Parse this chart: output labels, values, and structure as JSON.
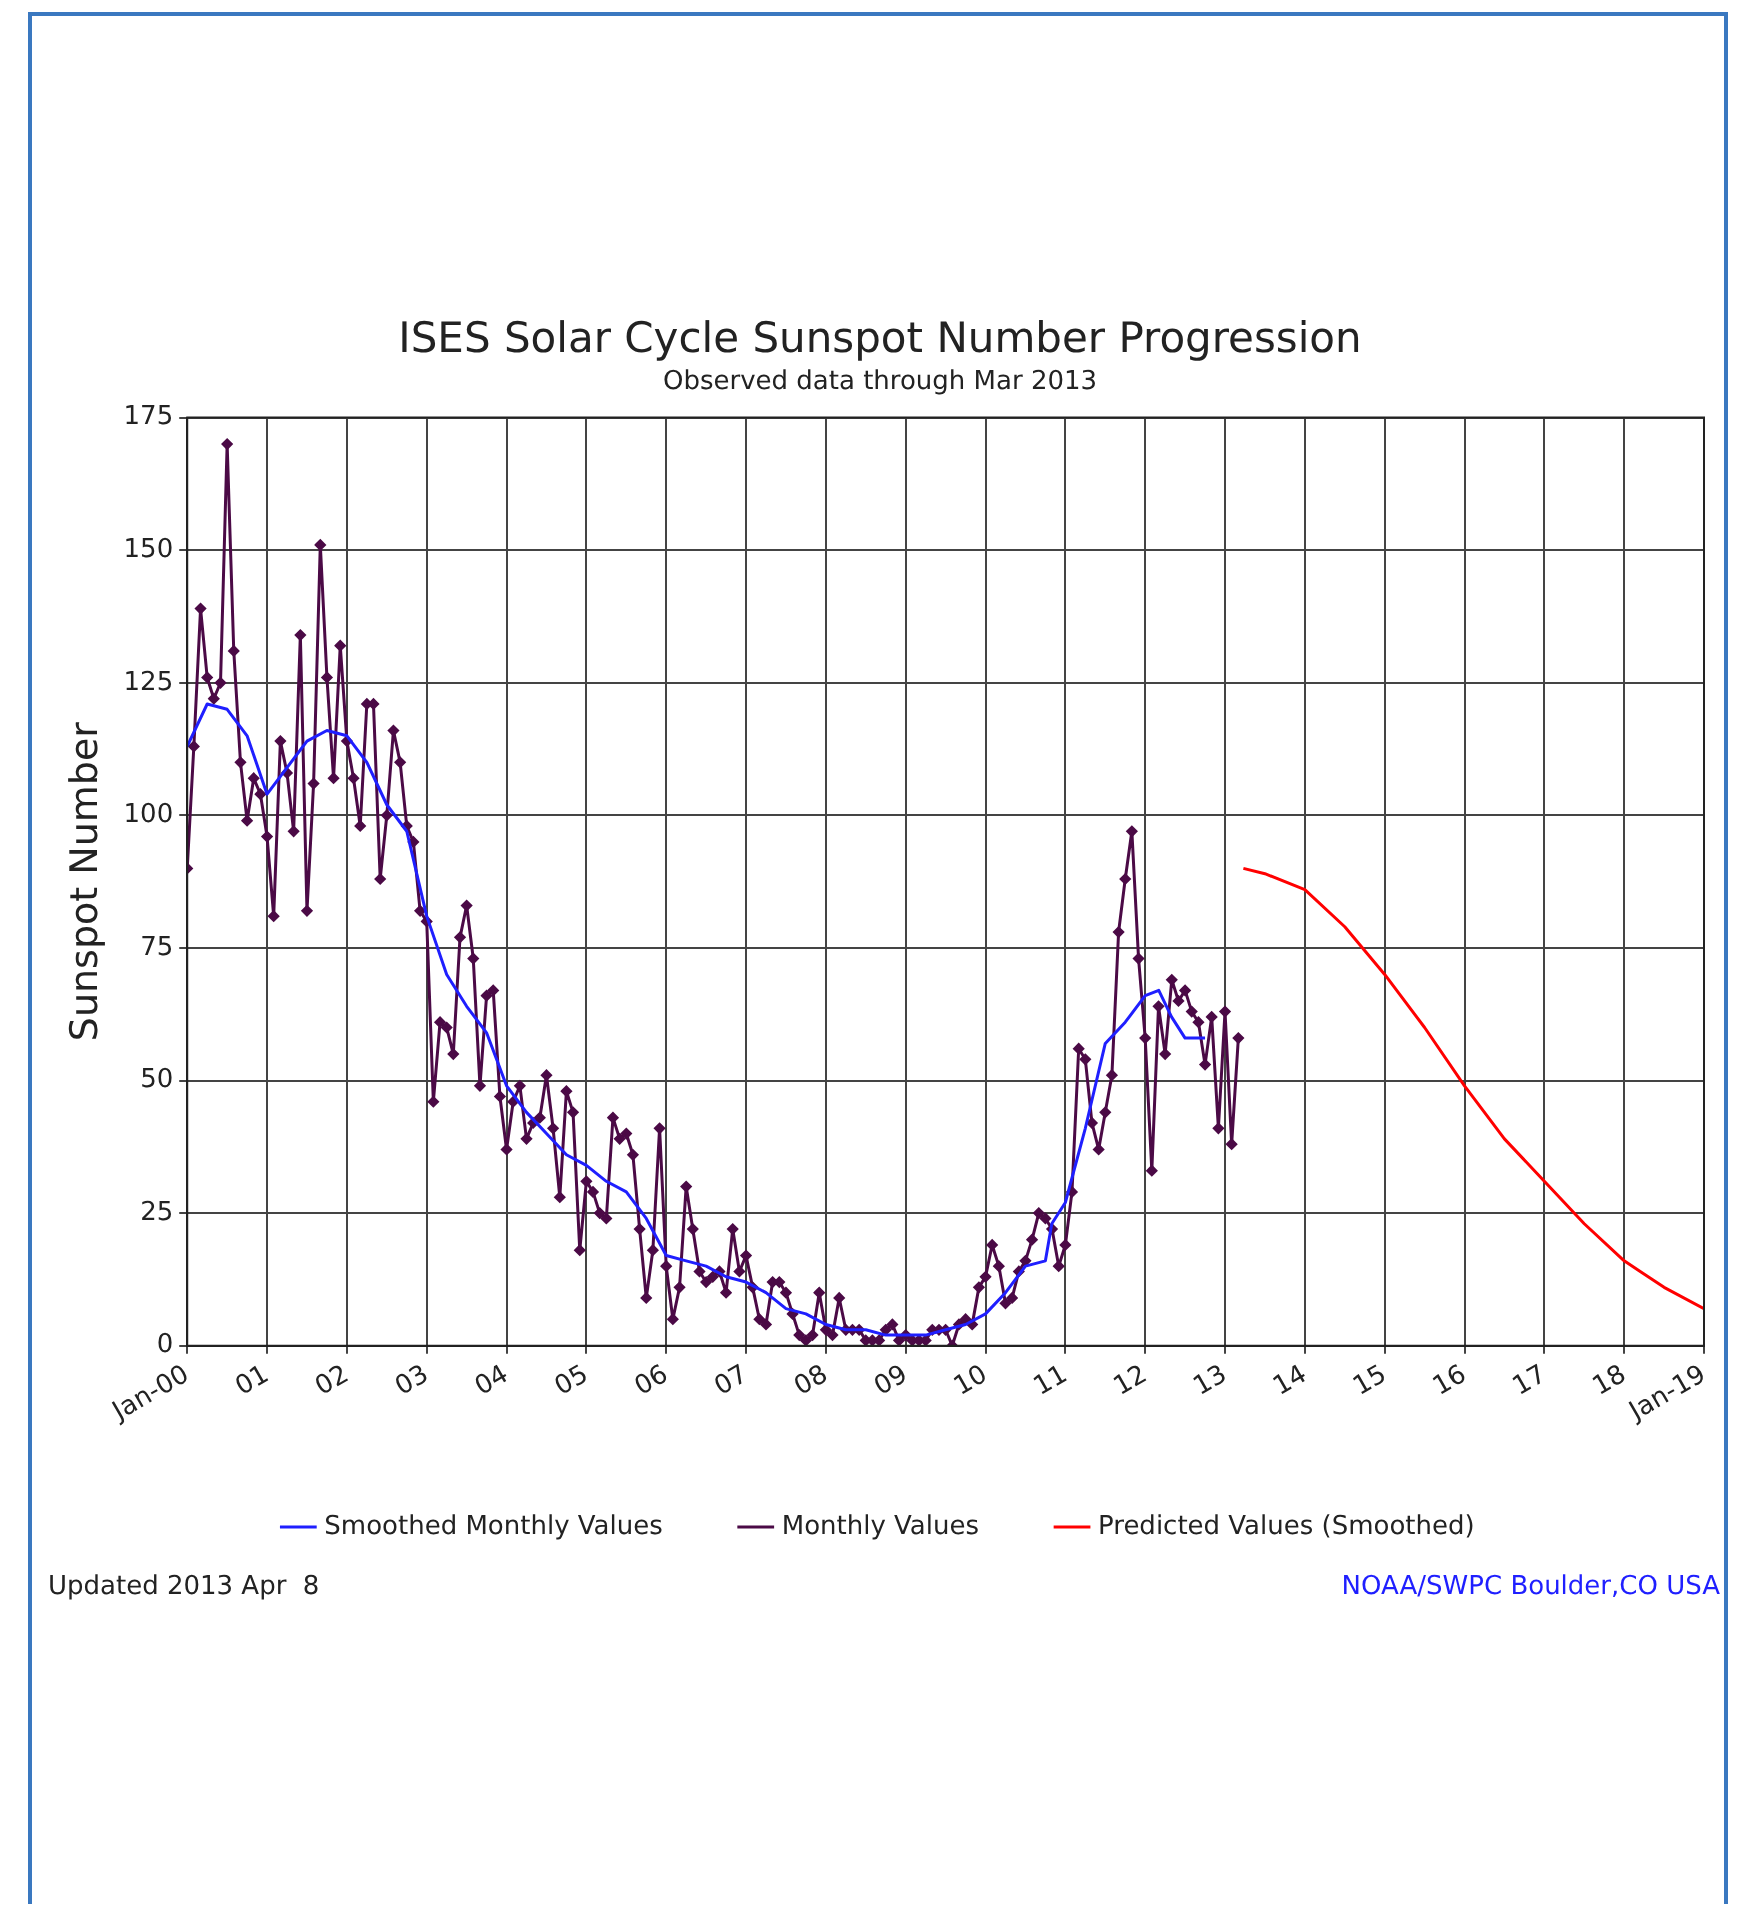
{
  "chart_data": {
    "type": "line",
    "title": "ISES Solar Cycle Sunspot Number Progression",
    "subtitle": "Observed data through Mar 2013",
    "ylabel": "Sunspot Number",
    "xlim": [
      2000,
      2019
    ],
    "xticks": [
      {
        "value": 2000,
        "label": "Jan-00"
      },
      {
        "value": 2001,
        "label": "01"
      },
      {
        "value": 2002,
        "label": "02"
      },
      {
        "value": 2003,
        "label": "03"
      },
      {
        "value": 2004,
        "label": "04"
      },
      {
        "value": 2005,
        "label": "05"
      },
      {
        "value": 2006,
        "label": "06"
      },
      {
        "value": 2007,
        "label": "07"
      },
      {
        "value": 2008,
        "label": "08"
      },
      {
        "value": 2009,
        "label": "09"
      },
      {
        "value": 2010,
        "label": "10"
      },
      {
        "value": 2011,
        "label": "11"
      },
      {
        "value": 2012,
        "label": "12"
      },
      {
        "value": 2013,
        "label": "13"
      },
      {
        "value": 2014,
        "label": "14"
      },
      {
        "value": 2015,
        "label": "15"
      },
      {
        "value": 2016,
        "label": "16"
      },
      {
        "value": 2017,
        "label": "17"
      },
      {
        "value": 2018,
        "label": "18"
      },
      {
        "value": 2019,
        "label": "Jan-19"
      }
    ],
    "ylim": [
      0,
      175
    ],
    "yticks": [
      0,
      25,
      50,
      75,
      100,
      125,
      150,
      175
    ],
    "grid": true,
    "legend": "bottom",
    "line_style": "solid",
    "series": [
      {
        "name": "Smoothed Monthly Values",
        "color": "#1f1fff",
        "marker": "none",
        "x": [
          2000,
          2000.25,
          2000.5,
          2000.75,
          2001,
          2001.25,
          2001.5,
          2001.75,
          2002,
          2002.25,
          2002.5,
          2002.75,
          2003,
          2003.25,
          2003.5,
          2003.75,
          2004,
          2004.25,
          2004.5,
          2004.75,
          2005,
          2005.25,
          2005.5,
          2005.75,
          2006,
          2006.25,
          2006.5,
          2006.75,
          2007,
          2007.25,
          2007.5,
          2007.75,
          2008,
          2008.25,
          2008.5,
          2008.75,
          2009,
          2009.25,
          2009.5,
          2009.75,
          2010,
          2010.25,
          2010.5,
          2010.75,
          2010.83,
          2011,
          2011.25,
          2011.5,
          2011.75,
          2012,
          2012.17,
          2012.33,
          2012.5,
          2012.75
        ],
        "values": [
          113,
          121,
          120,
          115,
          104,
          109,
          114,
          116,
          115,
          110,
          102,
          97,
          81,
          70,
          64,
          59,
          49,
          44,
          40,
          36,
          34,
          31,
          29,
          24,
          17,
          16,
          15,
          13,
          12,
          10,
          7,
          6,
          4,
          3,
          3,
          2,
          2,
          2,
          3,
          4,
          6,
          10,
          15,
          16,
          23,
          27,
          41,
          57,
          61,
          66,
          67,
          62,
          58,
          58
        ]
      },
      {
        "name": "Monthly Values",
        "color": "#4b0a46",
        "marker": "diamond",
        "x": [
          2000,
          2000.083,
          2000.167,
          2000.25,
          2000.333,
          2000.417,
          2000.5,
          2000.583,
          2000.667,
          2000.75,
          2000.833,
          2000.917,
          2001,
          2001.083,
          2001.167,
          2001.25,
          2001.333,
          2001.417,
          2001.5,
          2001.583,
          2001.667,
          2001.75,
          2001.833,
          2001.917,
          2002,
          2002.083,
          2002.167,
          2002.25,
          2002.333,
          2002.417,
          2002.5,
          2002.583,
          2002.667,
          2002.75,
          2002.833,
          2002.917,
          2003,
          2003.083,
          2003.167,
          2003.25,
          2003.333,
          2003.417,
          2003.5,
          2003.583,
          2003.667,
          2003.75,
          2003.833,
          2003.917,
          2004,
          2004.083,
          2004.167,
          2004.25,
          2004.333,
          2004.417,
          2004.5,
          2004.583,
          2004.667,
          2004.75,
          2004.833,
          2004.917,
          2005,
          2005.083,
          2005.167,
          2005.25,
          2005.333,
          2005.417,
          2005.5,
          2005.583,
          2005.667,
          2005.75,
          2005.833,
          2005.917,
          2006,
          2006.083,
          2006.167,
          2006.25,
          2006.333,
          2006.417,
          2006.5,
          2006.583,
          2006.667,
          2006.75,
          2006.833,
          2006.917,
          2007,
          2007.083,
          2007.167,
          2007.25,
          2007.333,
          2007.417,
          2007.5,
          2007.583,
          2007.667,
          2007.75,
          2007.833,
          2007.917,
          2008,
          2008.083,
          2008.167,
          2008.25,
          2008.333,
          2008.417,
          2008.5,
          2008.583,
          2008.667,
          2008.75,
          2008.833,
          2008.917,
          2009,
          2009.083,
          2009.167,
          2009.25,
          2009.333,
          2009.417,
          2009.5,
          2009.583,
          2009.667,
          2009.75,
          2009.833,
          2009.917,
          2010,
          2010.083,
          2010.167,
          2010.25,
          2010.333,
          2010.417,
          2010.5,
          2010.583,
          2010.667,
          2010.75,
          2010.833,
          2010.917,
          2011,
          2011.083,
          2011.167,
          2011.25,
          2011.333,
          2011.417,
          2011.5,
          2011.583,
          2011.667,
          2011.75,
          2011.833,
          2011.917,
          2012,
          2012.083,
          2012.167,
          2012.25,
          2012.333,
          2012.417,
          2012.5,
          2012.583,
          2012.667,
          2012.75,
          2012.833,
          2012.917,
          2013,
          2013.083,
          2013.167
        ],
        "values": [
          90,
          113,
          139,
          126,
          122,
          125,
          170,
          131,
          110,
          99,
          107,
          104,
          96,
          81,
          114,
          108,
          97,
          134,
          82,
          106,
          151,
          126,
          107,
          132,
          114,
          107,
          98,
          121,
          121,
          88,
          100,
          116,
          110,
          98,
          95,
          82,
          80,
          46,
          61,
          60,
          55,
          77,
          83,
          73,
          49,
          66,
          67,
          47,
          37,
          46,
          49,
          39,
          42,
          43,
          51,
          41,
          28,
          48,
          44,
          18,
          31,
          29,
          25,
          24,
          43,
          39,
          40,
          36,
          22,
          9,
          18,
          41,
          15,
          5,
          11,
          30,
          22,
          14,
          12,
          13,
          14,
          10,
          22,
          14,
          17,
          11,
          5,
          4,
          12,
          12,
          10,
          6,
          2,
          1,
          2,
          10,
          3,
          2,
          9,
          3,
          3,
          3,
          1,
          1,
          1,
          3,
          4,
          1,
          2,
          1,
          1,
          1,
          3,
          3,
          3,
          0,
          4,
          5,
          4,
          11,
          13,
          19,
          15,
          8,
          9,
          14,
          16,
          20,
          25,
          24,
          22,
          15,
          19,
          29,
          56,
          54,
          42,
          37,
          44,
          51,
          78,
          88,
          97,
          73,
          58,
          33,
          64,
          55,
          69,
          65,
          67,
          63,
          61,
          53,
          62,
          41,
          63,
          38,
          58
        ]
      },
      {
        "name": "Predicted Values (Smoothed)",
        "color": "#ff0000",
        "marker": "none",
        "x": [
          2013.23,
          2013.5,
          2014,
          2014.5,
          2015,
          2015.5,
          2016,
          2016.5,
          2017,
          2017.5,
          2018,
          2018.5,
          2019
        ],
        "values": [
          90,
          89,
          86,
          79,
          70,
          60,
          49,
          39,
          31,
          23,
          16,
          11,
          7
        ]
      }
    ],
    "annotations": [
      "Updated 2013 Apr  8",
      "NOAA/SWPC Boulder,CO USA"
    ]
  }
}
